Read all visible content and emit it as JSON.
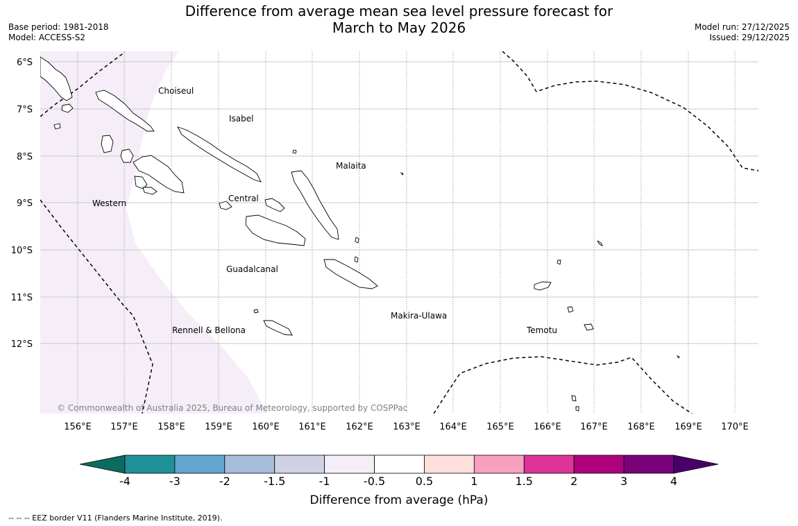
{
  "header": {
    "title_line1": "Difference from average mean sea level pressure forecast for",
    "title_line2": "March to May 2026",
    "base_period": "Base period: 1981-2018",
    "model": "Model: ACCESS-S2",
    "model_run": "Model run: 27/12/2025",
    "issued": "Issued: 29/12/2025"
  },
  "map": {
    "lon_range": [
      155.2,
      170.5
    ],
    "lat_range": [
      -13.5,
      -5.8
    ],
    "lon_ticks": [
      "156°E",
      "157°E",
      "158°E",
      "159°E",
      "160°E",
      "161°E",
      "162°E",
      "163°E",
      "164°E",
      "165°E",
      "166°E",
      "167°E",
      "168°E",
      "169°E",
      "170°E"
    ],
    "lat_ticks": [
      "6°S",
      "7°S",
      "8°S",
      "9°S",
      "10°S",
      "11°S",
      "12°S"
    ],
    "province_labels": [
      "Choiseul",
      "Isabel",
      "Malaita",
      "Central",
      "Western",
      "Guadalcanal",
      "Makira-Ulawa",
      "Rennell & Bellona",
      "Temotu"
    ],
    "shaded_category": "-1 to -0.5",
    "copyright": "© Commonwealth of Australia 2025, Bureau of Meteorology, supported by COSPPac"
  },
  "colorbar": {
    "ticks": [
      "-4",
      "-3",
      "-2",
      "-1.5",
      "-1",
      "-0.5",
      "0.5",
      "1",
      "1.5",
      "2",
      "3",
      "4"
    ],
    "colors": [
      "#0b6b5e",
      "#1e9199",
      "#62a6d1",
      "#a8bcdc",
      "#d0d1e5",
      "#f5eef8",
      "#ffffff",
      "#ffdede",
      "#f8a0c0",
      "#dd3497",
      "#ae017e",
      "#7a0177",
      "#49006a"
    ],
    "label": "Difference from average (hPa)"
  },
  "footnote": "-- -- -- EEZ border V11 (Flanders Marine Institute, 2019)."
}
